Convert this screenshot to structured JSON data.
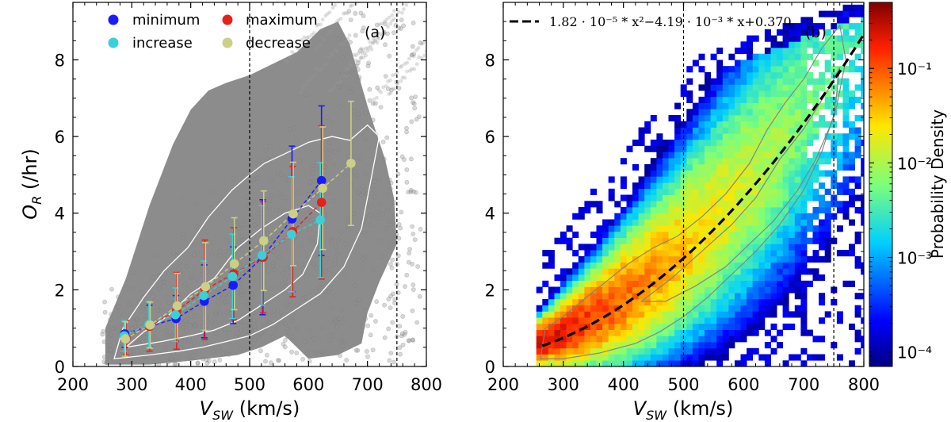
{
  "chart_data": [
    {
      "panel": "(a)",
      "type": "scatter",
      "xlabel_main": "V",
      "xlabel_sub": "SW",
      "xlabel_units": " (km/s)",
      "ylabel_main": "O",
      "ylabel_sub": "R",
      "ylabel_units": " (/hr)",
      "xlim": [
        200,
        800
      ],
      "ylim": [
        0,
        9.5
      ],
      "xticks": [
        200,
        300,
        400,
        500,
        600,
        700,
        800
      ],
      "yticks": [
        0,
        2,
        4,
        6,
        8
      ],
      "vlines": [
        500,
        750
      ],
      "series": [
        {
          "name": "minimum",
          "color": "#1a1aff",
          "x": [
            288,
            330,
            375,
            423,
            472,
            522,
            572,
            622
          ],
          "y": [
            0.85,
            1.05,
            1.25,
            1.7,
            2.12,
            2.85,
            3.85,
            4.85
          ],
          "err": [
            0.35,
            0.55,
            0.6,
            0.95,
            1.0,
            1.5,
            1.9,
            1.95
          ]
        },
        {
          "name": "maximum",
          "color": "#e8201a",
          "x": [
            290,
            330,
            376,
            424,
            473,
            523,
            573,
            622
          ],
          "y": [
            0.75,
            1.05,
            1.45,
            2.0,
            2.42,
            2.85,
            3.52,
            4.28
          ],
          "err": [
            0.45,
            0.65,
            1.0,
            1.3,
            1.2,
            1.45,
            1.7,
            2.0
          ]
        },
        {
          "name": "increase",
          "color": "#3ad0d8",
          "x": [
            287,
            329,
            374,
            422,
            471,
            521,
            571,
            620
          ],
          "y": [
            0.8,
            1.1,
            1.35,
            1.85,
            2.35,
            2.9,
            3.45,
            3.82
          ],
          "err": [
            0.4,
            0.6,
            0.7,
            0.9,
            1.1,
            1.3,
            1.5,
            1.5
          ]
        },
        {
          "name": "decrease",
          "color": "#ccd084",
          "x": [
            289,
            331,
            377,
            425,
            474,
            524,
            574,
            624,
            672
          ],
          "y": [
            0.72,
            1.08,
            1.58,
            2.08,
            2.68,
            3.28,
            3.98,
            4.65,
            5.3
          ],
          "err": [
            0.45,
            0.6,
            0.85,
            1.15,
            1.2,
            1.3,
            1.35,
            1.6,
            1.62
          ]
        }
      ]
    },
    {
      "panel": "(b)",
      "type": "heatmap",
      "xlabel_main": "V",
      "xlabel_sub": "SW",
      "xlabel_units": " (km/s)",
      "xlim": [
        200,
        800
      ],
      "ylim": [
        0,
        9.5
      ],
      "xticks": [
        200,
        300,
        400,
        500,
        600,
        700,
        800
      ],
      "yticks": [
        0,
        2,
        4,
        6,
        8
      ],
      "vlines": [
        500,
        750
      ],
      "fit_label": "1.82 · 10⁻⁵ * x²−4.19 · 10⁻³ * x+0.370",
      "fit_coeffs": [
        1.82e-05,
        -0.00419,
        0.37
      ],
      "colorbar": {
        "label": "Probability Density",
        "scale": "log",
        "range": [
          7e-05,
          0.5
        ],
        "ticks": [
          {
            "exp": -4,
            "text": "10⁻⁴"
          },
          {
            "exp": -3,
            "text": "10⁻³"
          },
          {
            "exp": -2,
            "text": "10⁻²"
          },
          {
            "exp": -1,
            "text": "10⁻¹"
          }
        ]
      }
    }
  ]
}
